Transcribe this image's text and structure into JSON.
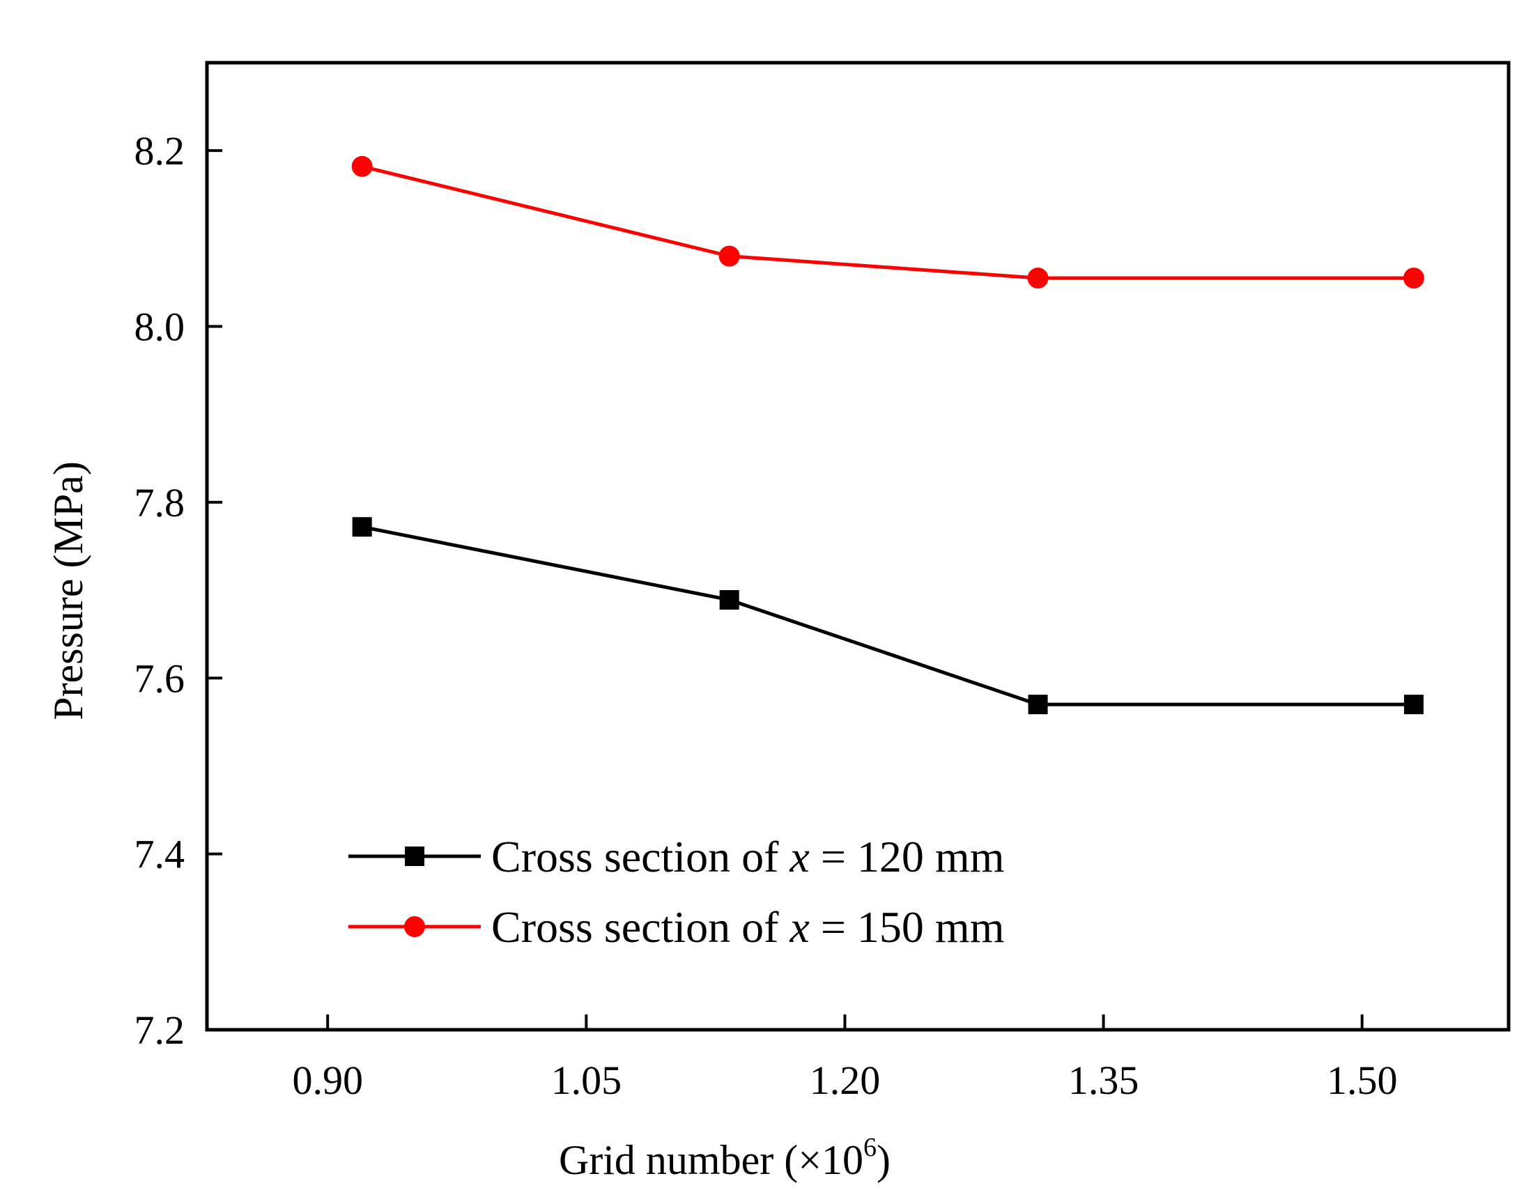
{
  "chart_data": {
    "type": "line",
    "title": "",
    "xlabel": "Grid number (×10",
    "xlabel_exponent": "6",
    "xlabel_close": ")",
    "ylabel": "Pressure (MPa)",
    "xlim": [
      0.83,
      1.585
    ],
    "ylim": [
      7.2,
      8.3
    ],
    "xticks": [
      0.9,
      1.05,
      1.2,
      1.35,
      1.5
    ],
    "xtick_labels": [
      "0.90",
      "1.05",
      "1.20",
      "1.35",
      "1.50"
    ],
    "yticks": [
      7.2,
      7.4,
      7.6,
      7.8,
      8.0,
      8.2
    ],
    "ytick_labels": [
      "7.2",
      "7.4",
      "7.6",
      "7.8",
      "8.0",
      "8.2"
    ],
    "grid": false,
    "legend_position": "bottom-left",
    "series": [
      {
        "name": "Cross section of x = 120 mm",
        "legend_prefix": "Cross section of ",
        "legend_var": "x",
        "legend_suffix": " = 120 mm",
        "color": "#000000",
        "marker": "square",
        "x": [
          0.92,
          1.133,
          1.312,
          1.53
        ],
        "y": [
          7.772,
          7.689,
          7.57,
          7.57
        ]
      },
      {
        "name": "Cross section of x = 150 mm",
        "legend_prefix": "Cross section of ",
        "legend_var": "x",
        "legend_suffix": " = 150 mm",
        "color": "#ff0000",
        "marker": "circle",
        "x": [
          0.92,
          1.133,
          1.312,
          1.53
        ],
        "y": [
          8.182,
          8.08,
          8.055,
          8.055
        ]
      }
    ]
  }
}
